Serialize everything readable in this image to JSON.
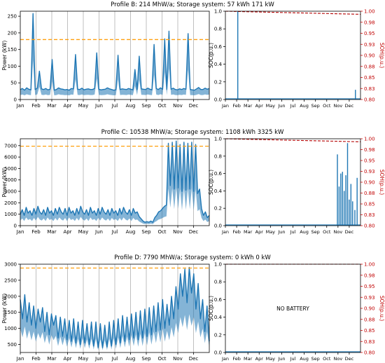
{
  "colors": {
    "power": "#1f77b4",
    "peak_limit": "#ff9f0e",
    "soh": "#b30000",
    "soh_axis": "#c00000",
    "grid": "#b0b0b0",
    "axis": "#000000"
  },
  "months": [
    "Jan",
    "Feb",
    "Mar",
    "Apr",
    "May",
    "Jun",
    "Jul",
    "Aug",
    "Sep",
    "Oct",
    "Nov",
    "Dec"
  ],
  "chart_data": [
    {
      "type": "line",
      "title": "Profile B: 214 MhW/a; Storage system: 57 kWh 171 kW",
      "ylabel": "Power (kW)",
      "ylim": [
        0,
        265
      ],
      "yticks": [
        0,
        50,
        100,
        150,
        200,
        250
      ],
      "xticks": [
        "Jan",
        "Feb",
        "Mar",
        "Apr",
        "May",
        "Jun",
        "Jul",
        "Aug",
        "Sep",
        "Oct",
        "Nov",
        "Dec"
      ],
      "grid_x": true,
      "peak_limit": 180,
      "series": [
        {
          "values": [
            30,
            33,
            28,
            35,
            31,
            29,
            258,
            30,
            34,
            85,
            32,
            30,
            33,
            29,
            31,
            120,
            28,
            30,
            35,
            32,
            31,
            29,
            30,
            28,
            33,
            32,
            135,
            31,
            30,
            34,
            29,
            31,
            32,
            30,
            30,
            33,
            140,
            31,
            29,
            30,
            31,
            35,
            32,
            30,
            28,
            29,
            133,
            30,
            32,
            31,
            30,
            33,
            31,
            29,
            90,
            30,
            130,
            32,
            31,
            30,
            34,
            31,
            29,
            165,
            33,
            30,
            35,
            31,
            182,
            30,
            205,
            31,
            34,
            30,
            29,
            32,
            30,
            33,
            31,
            198,
            30,
            29,
            28,
            32,
            36,
            30,
            30,
            34,
            31,
            33
          ]
        }
      ]
    },
    {
      "type": "line",
      "ylabel": "SOC(p.u.)",
      "ylabel_right": "SOH(p.u.)",
      "ylim": [
        0,
        1
      ],
      "yticks": [
        0.0,
        0.2,
        0.4,
        0.6,
        0.8,
        1.0
      ],
      "ylim_right": [
        0.8,
        1.0
      ],
      "yticks_right": [
        "0.80",
        "0.83",
        "0.85",
        "0.88",
        "0.90",
        "0.93",
        "0.95",
        "0.98",
        "1.00"
      ],
      "xticks": [
        "Jan",
        "Feb",
        "Mar",
        "Apr",
        "May",
        "Jun",
        "Jul",
        "Aug",
        "Sep",
        "Oct",
        "Nov",
        "Dec"
      ],
      "soc_spikes": [
        [
          1.1,
          1.0
        ],
        [
          11.55,
          0.11
        ]
      ],
      "soh": {
        "start": 1.0,
        "end": 0.993
      }
    },
    {
      "type": "line",
      "title": "Profile C: 10538 MhW/a; Storage system: 1108 kWh 3325 kW",
      "ylabel": "Power (kW)",
      "ylim": [
        0,
        7600
      ],
      "yticks": [
        0,
        1000,
        2000,
        3000,
        4000,
        5000,
        6000,
        7000
      ],
      "xticks": [
        "Jan",
        "Feb",
        "Mar",
        "Apr",
        "May",
        "Jun",
        "Jul",
        "Aug",
        "Sep",
        "Oct",
        "Nov",
        "Dec"
      ],
      "grid_x": true,
      "peak_limit": 6950,
      "series": [
        {
          "values": [
            1000,
            1400,
            900,
            1600,
            1100,
            1300,
            900,
            1500,
            1000,
            1700,
            1200,
            1000,
            1400,
            900,
            1600,
            1100,
            1300,
            900,
            1500,
            1000,
            1600,
            1200,
            1000,
            1500,
            900,
            1600,
            1100,
            1300,
            900,
            1500,
            1000,
            1700,
            1200,
            1000,
            1400,
            900,
            1600,
            1100,
            1300,
            900,
            1500,
            1000,
            1600,
            1200,
            1000,
            1400,
            900,
            1500,
            1100,
            1300,
            900,
            1500,
            1000,
            1600,
            1200,
            1000,
            1400,
            900,
            1500,
            1100,
            1200,
            800,
            600,
            400,
            300,
            350,
            300,
            400,
            300,
            700,
            900,
            1200,
            1300,
            1500,
            1700,
            1800,
            7200,
            3500,
            7300,
            3200,
            7400,
            3300,
            7100,
            3000,
            7300,
            3100,
            7200,
            3200,
            7300,
            3000,
            7100,
            2800,
            3200,
            1500,
            900,
            1200,
            700,
            900
          ]
        }
      ]
    },
    {
      "type": "line",
      "ylabel": "SOC(p.u.)",
      "ylabel_right": "SOH(p.u.)",
      "ylim": [
        0,
        1
      ],
      "yticks": [
        0.0,
        0.2,
        0.4,
        0.6,
        0.8,
        1.0
      ],
      "ylim_right": [
        0.8,
        1.0
      ],
      "yticks_right": [
        "0.80",
        "0.83",
        "0.85",
        "0.88",
        "0.90",
        "0.93",
        "0.95",
        "0.98",
        "1.00"
      ],
      "xticks": [
        "Jan",
        "Feb",
        "Mar",
        "Apr",
        "May",
        "Jun",
        "Jul",
        "Aug",
        "Sep",
        "Oct",
        "Nov",
        "Dec"
      ],
      "soc_spikes": [
        [
          9.95,
          0.82
        ],
        [
          10.1,
          0.45
        ],
        [
          10.25,
          0.6
        ],
        [
          10.4,
          0.62
        ],
        [
          10.55,
          0.4
        ],
        [
          10.7,
          0.58
        ],
        [
          10.85,
          0.95
        ],
        [
          11.0,
          0.3
        ],
        [
          11.15,
          0.48
        ],
        [
          11.3,
          0.28
        ],
        [
          11.5,
          0.18
        ],
        [
          11.7,
          0.55
        ]
      ],
      "soh": {
        "start": 1.0,
        "end": 0.993
      }
    },
    {
      "type": "line",
      "title": "Profile D: 7790 MhW/a; Storage system: 0 kWh 0 kW",
      "ylabel": "Power (kW)",
      "ylim": [
        250,
        3000
      ],
      "yticks": [
        500,
        1000,
        1500,
        2000,
        2500,
        3000
      ],
      "xticks": [
        "Jan",
        "Feb",
        "Mar",
        "Apr",
        "May",
        "Jun",
        "Jul",
        "Aug",
        "Sep",
        "Oct",
        "Nov",
        "Dec"
      ],
      "grid_x": true,
      "peak_limit": 2880,
      "series": [
        {
          "values": [
            1900,
            1300,
            2050,
            1200,
            1800,
            1100,
            1700,
            1000,
            1600,
            1200,
            1650,
            900,
            1500,
            800,
            1450,
            1100,
            1400,
            700,
            1350,
            750,
            1300,
            650,
            1250,
            600,
            1300,
            550,
            1200,
            500,
            1250,
            550,
            1150,
            500,
            1200,
            450,
            1200,
            400,
            1150,
            400,
            1100,
            420,
            1200,
            450,
            1250,
            500,
            1300,
            550,
            1400,
            600,
            1350,
            650,
            1450,
            700,
            1500,
            650,
            1550,
            700,
            1600,
            750,
            1650,
            800,
            1700,
            900,
            1800,
            950,
            1900,
            1000,
            1750,
            1100,
            2000,
            1300,
            2300,
            1600,
            2700,
            2000,
            2850,
            1800,
            2900,
            2100,
            2700,
            1600,
            2400,
            1300,
            1900,
            900,
            1700,
            600
          ]
        }
      ]
    },
    {
      "type": "line",
      "ylabel": "SOC(p.u.)",
      "ylabel_right": "SOH(p.u.)",
      "ylim": [
        0,
        1
      ],
      "yticks": [
        0.0,
        0.2,
        0.4,
        0.6,
        0.8,
        1.0
      ],
      "ylim_right": [
        0.8,
        1.0
      ],
      "yticks_right": [
        "0.80",
        "0.83",
        "0.85",
        "0.88",
        "0.90",
        "0.93",
        "0.95",
        "0.98",
        "1.00"
      ],
      "xticks": [
        "Jan",
        "Feb",
        "Mar",
        "Apr",
        "May",
        "Jun",
        "Jul",
        "Aug",
        "Sep",
        "Oct",
        "Nov",
        "Dec"
      ],
      "annotation": "NO BATTERY",
      "soc_spikes": [],
      "soh": {
        "start": 1.0,
        "end": 1.0
      }
    }
  ]
}
